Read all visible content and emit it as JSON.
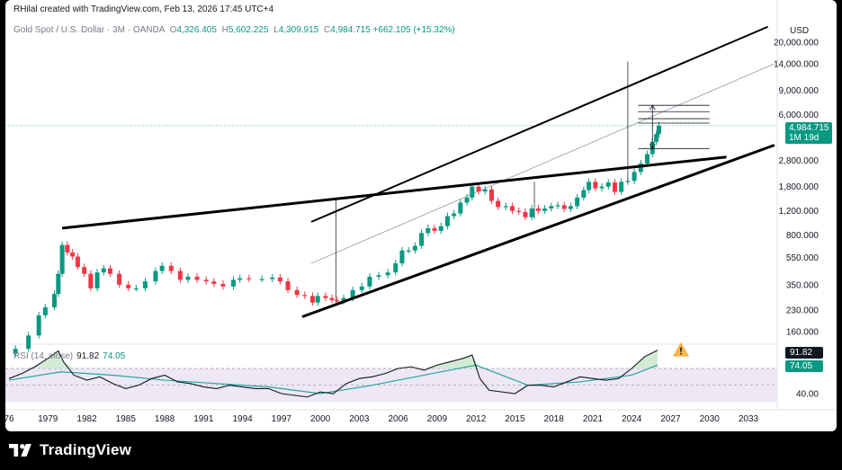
{
  "header": {
    "attribution": "RHilal created with TradingView.com, Feb 13, 2026 17:45 UTC+4",
    "symbol": "Gold Spot / U.S. Dollar · 3M · OANDA",
    "ohlc": {
      "open_label": "O",
      "open": "4,326.405",
      "high_label": "H",
      "high": "5,602.225",
      "low_label": "L",
      "low": "4,309.915",
      "close_label": "C",
      "close": "4,984.715",
      "change": "+662.105 (+15.32%)"
    }
  },
  "price_axis": {
    "currency": "USD",
    "labels": [
      "20,000.000",
      "14,000.000",
      "9,000.000",
      "6,000.000",
      "2,800.000",
      "1,800.000",
      "1,200.000",
      "800.000",
      "550.000",
      "350.000",
      "230.000",
      "160.000"
    ],
    "last_price": "4,984.715",
    "countdown": "1M 19d"
  },
  "rsi": {
    "label": "RSI (14, close)",
    "rsi_value": "91.82",
    "ma_value": "74.05",
    "axis_label": "40.00",
    "warning_icon": "warning-triangle-icon"
  },
  "time_axis": {
    "labels": [
      "76",
      "1979",
      "1982",
      "1985",
      "1988",
      "1991",
      "1994",
      "1997",
      "2000",
      "2003",
      "2006",
      "2009",
      "2012",
      "2015",
      "2018",
      "2021",
      "2024",
      "2027",
      "2030",
      "2033"
    ]
  },
  "footer": {
    "brand": "TradingView",
    "logo_icon": "tradingview-logo-icon"
  },
  "colors": {
    "up": "#089981",
    "down": "#f23645",
    "rsi_line": "#131722",
    "rsi_ma": "#26a69a",
    "rsi_band": "#ede7f6"
  },
  "chart_data": [
    {
      "type": "candlestick",
      "title": "Gold Spot / U.S. Dollar",
      "interval": "3M",
      "scale": "log",
      "ylim": [
        120,
        28000
      ],
      "xlim": [
        1976,
        2035
      ],
      "series": [
        {
          "name": "Gold",
          "points": [
            [
              1976.5,
              120
            ],
            [
              1977.5,
              150
            ],
            [
              1978.3,
              210
            ],
            [
              1978.8,
              240
            ],
            [
              1979.5,
              300
            ],
            [
              1979.8,
              420
            ],
            [
              1980.1,
              680
            ],
            [
              1980.5,
              600
            ],
            [
              1980.9,
              560
            ],
            [
              1981.3,
              470
            ],
            [
              1981.8,
              420
            ],
            [
              1982.3,
              330
            ],
            [
              1982.8,
              430
            ],
            [
              1983.3,
              460
            ],
            [
              1983.8,
              420
            ],
            [
              1984.5,
              350
            ],
            [
              1985.2,
              330
            ],
            [
              1985.8,
              330
            ],
            [
              1986.5,
              370
            ],
            [
              1987.3,
              440
            ],
            [
              1987.8,
              480
            ],
            [
              1988.5,
              440
            ],
            [
              1989.2,
              380
            ],
            [
              1989.8,
              400
            ],
            [
              1990.5,
              380
            ],
            [
              1991.2,
              370
            ],
            [
              1991.8,
              355
            ],
            [
              1992.5,
              340
            ],
            [
              1993.3,
              380
            ],
            [
              1993.8,
              390
            ],
            [
              1994.5,
              385
            ],
            [
              1995.5,
              385
            ],
            [
              1996.3,
              395
            ],
            [
              1996.9,
              370
            ],
            [
              1997.5,
              320
            ],
            [
              1998.2,
              295
            ],
            [
              1998.8,
              290
            ],
            [
              1999.4,
              260
            ],
            [
              1999.8,
              290
            ],
            [
              2000.4,
              280
            ],
            [
              2000.9,
              270
            ],
            [
              2001.3,
              265
            ],
            [
              2001.8,
              280
            ],
            [
              2002.5,
              320
            ],
            [
              2003.2,
              340
            ],
            [
              2003.8,
              400
            ],
            [
              2004.5,
              410
            ],
            [
              2005.2,
              430
            ],
            [
              2005.8,
              500
            ],
            [
              2006.3,
              620
            ],
            [
              2006.8,
              620
            ],
            [
              2007.3,
              670
            ],
            [
              2007.8,
              830
            ],
            [
              2008.3,
              900
            ],
            [
              2008.8,
              860
            ],
            [
              2009.3,
              930
            ],
            [
              2009.8,
              1100
            ],
            [
              2010.3,
              1150
            ],
            [
              2010.8,
              1380
            ],
            [
              2011.3,
              1500
            ],
            [
              2011.7,
              1800
            ],
            [
              2012.2,
              1660
            ],
            [
              2012.7,
              1720
            ],
            [
              2013.2,
              1420
            ],
            [
              2013.7,
              1280
            ],
            [
              2014.3,
              1300
            ],
            [
              2014.8,
              1200
            ],
            [
              2015.3,
              1180
            ],
            [
              2015.8,
              1080
            ],
            [
              2016.3,
              1250
            ],
            [
              2016.8,
              1200
            ],
            [
              2017.3,
              1250
            ],
            [
              2017.8,
              1300
            ],
            [
              2018.3,
              1320
            ],
            [
              2018.8,
              1240
            ],
            [
              2019.3,
              1300
            ],
            [
              2019.8,
              1500
            ],
            [
              2020.3,
              1700
            ],
            [
              2020.7,
              1950
            ],
            [
              2021.2,
              1750
            ],
            [
              2021.7,
              1800
            ],
            [
              2022.2,
              1930
            ],
            [
              2022.7,
              1650
            ],
            [
              2023.2,
              1950
            ],
            [
              2023.7,
              1980
            ],
            [
              2024.2,
              2300
            ],
            [
              2024.7,
              2650
            ],
            [
              2025.2,
              3100
            ],
            [
              2025.6,
              3800
            ],
            [
              2025.9,
              4330
            ],
            [
              2026.1,
              4985
            ]
          ]
        }
      ]
    },
    {
      "type": "line",
      "title": "RSI (14, close)",
      "ylim": [
        20,
        100
      ],
      "series": [
        {
          "name": "RSI",
          "x": [
            1976,
            1977,
            1978,
            1979,
            1979.8,
            1980.2,
            1981,
            1982,
            1983,
            1984,
            1985,
            1986,
            1987,
            1988,
            1989,
            1990,
            1991,
            1992,
            1993,
            1994,
            1995,
            1996,
            1997,
            1998,
            1999,
            2000,
            2001,
            2002,
            2003,
            2004,
            2005,
            2006,
            2007,
            2008,
            2009,
            2010,
            2011,
            2011.7,
            2012.3,
            2013,
            2014,
            2015,
            2016,
            2017,
            2018,
            2019,
            2020,
            2021,
            2022,
            2023,
            2024,
            2025,
            2026
          ],
          "values": [
            58,
            64,
            72,
            82,
            91,
            78,
            62,
            56,
            60,
            52,
            46,
            50,
            58,
            62,
            54,
            52,
            48,
            46,
            50,
            48,
            46,
            46,
            40,
            38,
            36,
            42,
            40,
            52,
            58,
            60,
            64,
            70,
            72,
            68,
            74,
            78,
            82,
            86,
            58,
            44,
            42,
            40,
            50,
            50,
            48,
            54,
            60,
            58,
            56,
            58,
            70,
            84,
            91.82
          ]
        },
        {
          "name": "RSI-based MA",
          "x": [
            1976,
            1980,
            1984,
            1988,
            1992,
            1996,
            2000,
            2004,
            2008,
            2012,
            2016,
            2020,
            2024,
            2026
          ],
          "values": [
            56,
            66,
            62,
            56,
            52,
            48,
            40,
            50,
            62,
            74,
            50,
            54,
            62,
            74.05
          ]
        }
      ]
    }
  ]
}
